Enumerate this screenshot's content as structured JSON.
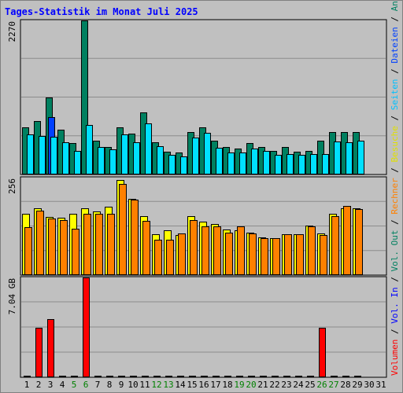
{
  "title": "Tages-Statistik im Monat Juli 2025",
  "colors": {
    "background": "#c0c0c0",
    "frame": "#808080",
    "title": "#0000ff",
    "grid": "#8c8c8c",
    "anfragen": "#008060",
    "dateien": "#0040ff",
    "seiten": "#00e0ff",
    "besuche": "#ffff00",
    "rechner": "#ff8000",
    "volumen": "#ff0000",
    "weekend_label": "#008000",
    "weekday_label": "#000000"
  },
  "right_legend": [
    {
      "text": "Volumen",
      "color": "#ff0000"
    },
    {
      "text": " / ",
      "color": "#000000"
    },
    {
      "text": "Vol. In",
      "color": "#0000ff"
    },
    {
      "text": " / ",
      "color": "#000000"
    },
    {
      "text": "Vol. Out",
      "color": "#008060"
    },
    {
      "text": " / ",
      "color": "#000000"
    },
    {
      "text": "Rechner",
      "color": "#ff8000"
    },
    {
      "text": " / ",
      "color": "#000000"
    },
    {
      "text": "Besuche",
      "color": "#e0e000"
    },
    {
      "text": " / ",
      "color": "#000000"
    },
    {
      "text": "Seiten",
      "color": "#00c0ff"
    },
    {
      "text": " / ",
      "color": "#000000"
    },
    {
      "text": "Dateien",
      "color": "#0040ff"
    },
    {
      "text": " / ",
      "color": "#000000"
    },
    {
      "text": "Anfragen",
      "color": "#008060"
    }
  ],
  "chart_data": [
    {
      "type": "bar",
      "ymax_label": "2270",
      "ylim": [
        0,
        2270
      ],
      "categories": [
        "1",
        "2",
        "3",
        "4",
        "5",
        "6",
        "7",
        "8",
        "9",
        "10",
        "11",
        "12",
        "13",
        "14",
        "15",
        "16",
        "17",
        "18",
        "19",
        "20",
        "21",
        "22",
        "23",
        "24",
        "25",
        "26",
        "27",
        "28",
        "29",
        "30",
        "31"
      ],
      "weekend_days": [
        5,
        6,
        12,
        13,
        19,
        20,
        26,
        27
      ],
      "series": [
        {
          "name": "Anfragen",
          "values": [
            700,
            790,
            1140,
            660,
            460,
            2270,
            500,
            410,
            700,
            600,
            920,
            480,
            340,
            330,
            630,
            700,
            500,
            410,
            380,
            460,
            400,
            350,
            400,
            340,
            350,
            500,
            620,
            620,
            630,
            0,
            0
          ]
        },
        {
          "name": "Dateien",
          "values": [
            0,
            0,
            840,
            0,
            0,
            0,
            0,
            0,
            0,
            0,
            0,
            0,
            0,
            0,
            0,
            0,
            0,
            0,
            0,
            0,
            0,
            0,
            0,
            0,
            0,
            0,
            0,
            0,
            0,
            0,
            0
          ]
        },
        {
          "name": "Seiten",
          "values": [
            590,
            570,
            560,
            480,
            350,
            730,
            410,
            370,
            590,
            480,
            750,
            420,
            290,
            270,
            540,
            610,
            390,
            320,
            330,
            380,
            350,
            290,
            300,
            290,
            300,
            300,
            490,
            480,
            500,
            0,
            0
          ]
        }
      ]
    },
    {
      "type": "bar",
      "ymax_label": "256",
      "ylim": [
        0,
        256
      ],
      "categories": [
        "1",
        "2",
        "3",
        "4",
        "5",
        "6",
        "7",
        "8",
        "9",
        "10",
        "11",
        "12",
        "13",
        "14",
        "15",
        "16",
        "17",
        "18",
        "19",
        "20",
        "21",
        "22",
        "23",
        "24",
        "25",
        "26",
        "27",
        "28",
        "29",
        "30",
        "31"
      ],
      "series": [
        {
          "name": "Besuche",
          "values": [
            160,
            175,
            152,
            150,
            162,
            175,
            168,
            180,
            250,
            200,
            155,
            108,
            118,
            105,
            155,
            140,
            135,
            120,
            118,
            112,
            100,
            98,
            108,
            108,
            130,
            110,
            160,
            175,
            175,
            0,
            0
          ]
        },
        {
          "name": "Rechner",
          "values": [
            125,
            170,
            148,
            145,
            122,
            162,
            160,
            160,
            240,
            198,
            142,
            92,
            92,
            110,
            145,
            128,
            128,
            112,
            128,
            110,
            97,
            97,
            108,
            108,
            128,
            105,
            155,
            182,
            173,
            0,
            0
          ]
        }
      ]
    },
    {
      "type": "bar",
      "ymax_label": "7.04 GB",
      "ylim": [
        0,
        7.04
      ],
      "categories": [
        "1",
        "2",
        "3",
        "4",
        "5",
        "6",
        "7",
        "8",
        "9",
        "10",
        "11",
        "12",
        "13",
        "14",
        "15",
        "16",
        "17",
        "18",
        "19",
        "20",
        "21",
        "22",
        "23",
        "24",
        "25",
        "26",
        "27",
        "28",
        "29",
        "30",
        "31"
      ],
      "series": [
        {
          "name": "Volumen",
          "values": [
            0.02,
            3.5,
            4.1,
            0.02,
            0.02,
            7.04,
            0.02,
            0.02,
            0.02,
            0.02,
            0.02,
            0.02,
            0.02,
            0.02,
            0.02,
            0.02,
            0.02,
            0.02,
            0.02,
            0.02,
            0.02,
            0.02,
            0.02,
            0.02,
            0.02,
            3.5,
            0.02,
            0.02,
            0.02,
            0,
            0
          ]
        }
      ]
    }
  ]
}
